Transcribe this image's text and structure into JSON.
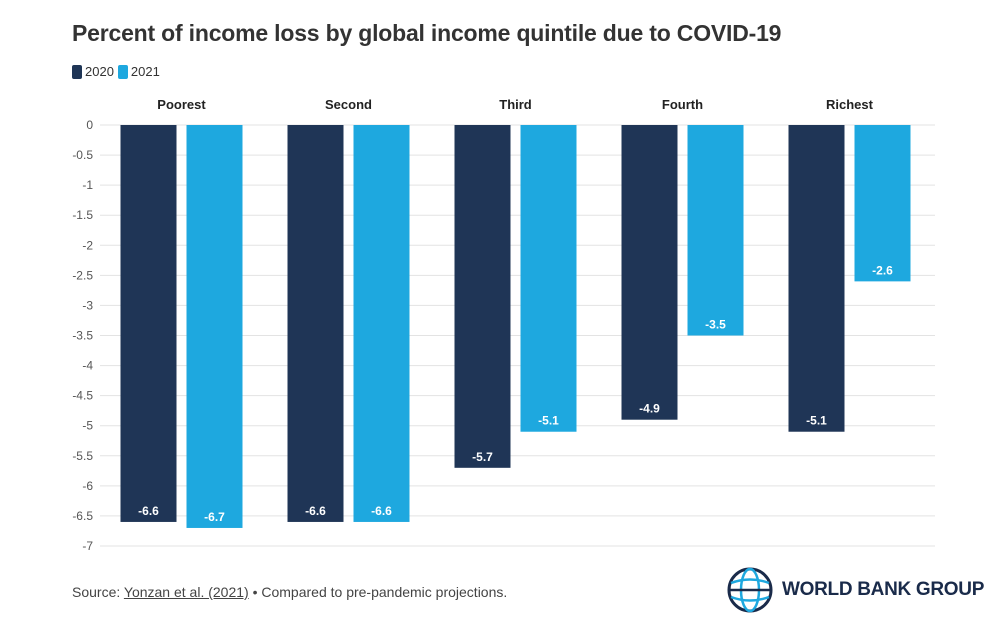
{
  "header": {
    "title": "Percent of income loss by global income quintile due to COVID-19"
  },
  "colors": {
    "series_2020": "#1f3556",
    "series_2021": "#1ea8df",
    "grid": "#e3e3e3",
    "text": "#333333"
  },
  "chart_data": {
    "type": "bar",
    "title": "Percent of income loss by global income quintile due to COVID-19",
    "categories": [
      "Poorest",
      "Second",
      "Third",
      "Fourth",
      "Richest"
    ],
    "series": [
      {
        "name": "2020",
        "values": [
          -6.6,
          -6.6,
          -5.7,
          -4.9,
          -5.1
        ]
      },
      {
        "name": "2021",
        "values": [
          -6.7,
          -6.6,
          -5.1,
          -3.5,
          -2.6
        ]
      }
    ],
    "ylim": [
      -7,
      0
    ],
    "yticks": [
      "0",
      "-0.5",
      "-1",
      "-1.5",
      "-2",
      "-2.5",
      "-3",
      "-3.5",
      "-4",
      "-4.5",
      "-5",
      "-5.5",
      "-6",
      "-6.5",
      "-7"
    ],
    "grid": true,
    "legend": "top-left",
    "xlabel": "",
    "ylabel": ""
  },
  "footer": {
    "source_prefix": "Source: ",
    "source_link": "Yonzan et al. (2021)",
    "source_suffix": " • Compared to pre-pandemic projections.",
    "logo_text": "WORLD BANK GROUP",
    "logo_icon": "globe-icon"
  }
}
